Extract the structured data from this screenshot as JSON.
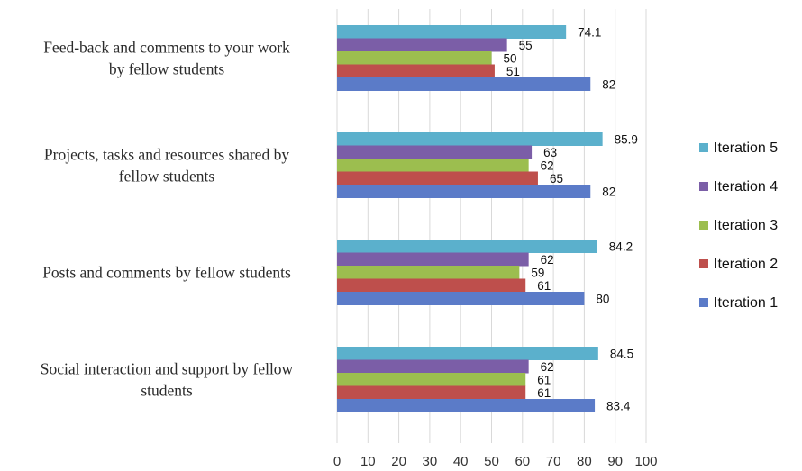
{
  "chart_data": {
    "type": "bar",
    "orientation": "horizontal",
    "title": "",
    "xlabel": "",
    "ylabel": "",
    "xlim": [
      0,
      100
    ],
    "x_ticks": [
      0,
      10,
      20,
      30,
      40,
      50,
      60,
      70,
      80,
      90,
      100
    ],
    "grid": "vertical",
    "legend_position": "right",
    "categories": [
      {
        "lines": [
          "Feed-back and comments to your work",
          "by fellow students"
        ]
      },
      {
        "lines": [
          "Projects, tasks and resources shared by",
          "fellow students"
        ]
      },
      {
        "lines": [
          "Posts and comments by fellow students"
        ]
      },
      {
        "lines": [
          "Social interaction and support by fellow",
          "students"
        ]
      }
    ],
    "series": [
      {
        "name": "Iteration 5",
        "color": "#5BB0CC",
        "values": [
          74.1,
          85.9,
          84.2,
          84.5
        ],
        "labels": [
          "74.1",
          "85.9",
          "84.2",
          "84.5"
        ]
      },
      {
        "name": "Iteration 4",
        "color": "#7B5EA7",
        "values": [
          55,
          63,
          62,
          62
        ],
        "labels": [
          "55",
          "63",
          "62",
          "62"
        ]
      },
      {
        "name": "Iteration 3",
        "color": "#9CBE4F",
        "values": [
          50,
          62,
          59,
          61
        ],
        "labels": [
          "50",
          "62",
          "59",
          "61"
        ]
      },
      {
        "name": "Iteration 2",
        "color": "#BE4F4C",
        "values": [
          51,
          65,
          61,
          61
        ],
        "labels": [
          "51",
          "65",
          "61",
          "61"
        ]
      },
      {
        "name": "Iteration 1",
        "color": "#5B7BC8",
        "values": [
          82,
          82,
          80,
          83.4
        ],
        "labels": [
          "82",
          "82",
          "80",
          "83.4"
        ]
      }
    ]
  }
}
